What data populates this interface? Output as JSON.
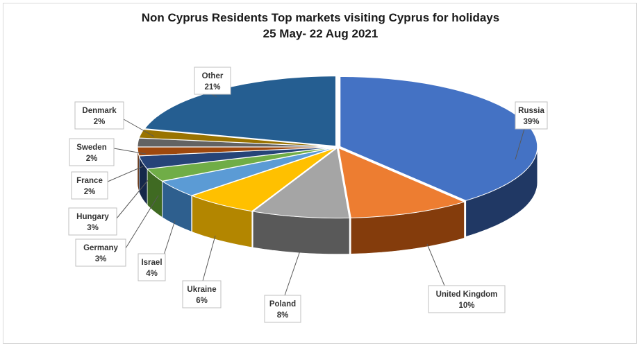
{
  "chart_data": {
    "type": "pie",
    "title": "Non Cyprus Residents Top markets visiting Cyprus for holidays",
    "subtitle": "25 May- 22 Aug 2021",
    "style": "3d-exploded-pie",
    "slices": [
      {
        "label": "Russia",
        "percent_label": "39%",
        "value": 39,
        "color": "#4472c4",
        "side_color": "#203864"
      },
      {
        "label": "United Kingdom",
        "percent_label": "10%",
        "value": 10,
        "color": "#ed7d31",
        "side_color": "#843c0c"
      },
      {
        "label": "Poland",
        "percent_label": "8%",
        "value": 8,
        "color": "#a5a5a5",
        "side_color": "#595959"
      },
      {
        "label": "Ukraine",
        "percent_label": "6%",
        "value": 6,
        "color": "#ffc000",
        "side_color": "#b38600"
      },
      {
        "label": "Israel",
        "percent_label": "4%",
        "value": 4,
        "color": "#5b9bd5",
        "side_color": "#2e5f8e"
      },
      {
        "label": "Germany",
        "percent_label": "3%",
        "value": 3,
        "color": "#70ad47",
        "side_color": "#3f6a22"
      },
      {
        "label": "Hungary",
        "percent_label": "3%",
        "value": 3,
        "color": "#264478",
        "side_color": "#15284a"
      },
      {
        "label": "France",
        "percent_label": "2%",
        "value": 2,
        "color": "#9e480e",
        "side_color": "#5c2908"
      },
      {
        "label": "Sweden",
        "percent_label": "2%",
        "value": 2,
        "color": "#636363",
        "side_color": "#363636"
      },
      {
        "label": "Denmark",
        "percent_label": "2%",
        "value": 2,
        "color": "#997300",
        "side_color": "#5a4400"
      },
      {
        "label": "Other",
        "percent_label": "21%",
        "value": 21,
        "color": "#255e91",
        "side_color": "#143655"
      }
    ]
  }
}
